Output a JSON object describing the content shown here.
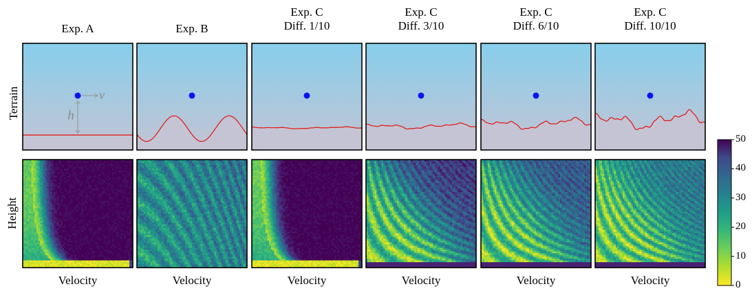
{
  "chart_data": {
    "type": "heatmap",
    "panels": [
      {
        "id": "exp-a",
        "title": [
          "Exp. A"
        ],
        "terrain": "flat",
        "roughness": 0.0
      },
      {
        "id": "exp-b",
        "title": [
          "Exp. B"
        ],
        "terrain": "sinusoid",
        "roughness": 1.0
      },
      {
        "id": "exp-c-1",
        "title": [
          "Exp. C",
          "Diff. 1/10"
        ],
        "terrain": "random",
        "roughness": 0.1
      },
      {
        "id": "exp-c-3",
        "title": [
          "Exp. C",
          "Diff. 3/10"
        ],
        "terrain": "random",
        "roughness": 0.3
      },
      {
        "id": "exp-c-6",
        "title": [
          "Exp. C",
          "Diff. 6/10"
        ],
        "terrain": "random",
        "roughness": 0.6
      },
      {
        "id": "exp-c-10",
        "title": [
          "Exp. C",
          "Diff. 10/10"
        ],
        "terrain": "random",
        "roughness": 1.0
      }
    ],
    "row_labels": {
      "terrain": "Terrain",
      "heatmap": "Height"
    },
    "xlabel": "Velocity",
    "terrain_annotations": {
      "velocity": "v",
      "height": "h"
    },
    "colorbar": {
      "range": [
        0,
        50
      ],
      "ticks": [
        0,
        10,
        20,
        30,
        40,
        50
      ],
      "colormap": "viridis_r"
    },
    "colors": {
      "sky_top": "#87ceeb",
      "ground": "#c4c4d4",
      "terrain_line": "#e0201c",
      "agent": "#0a14ee"
    }
  }
}
